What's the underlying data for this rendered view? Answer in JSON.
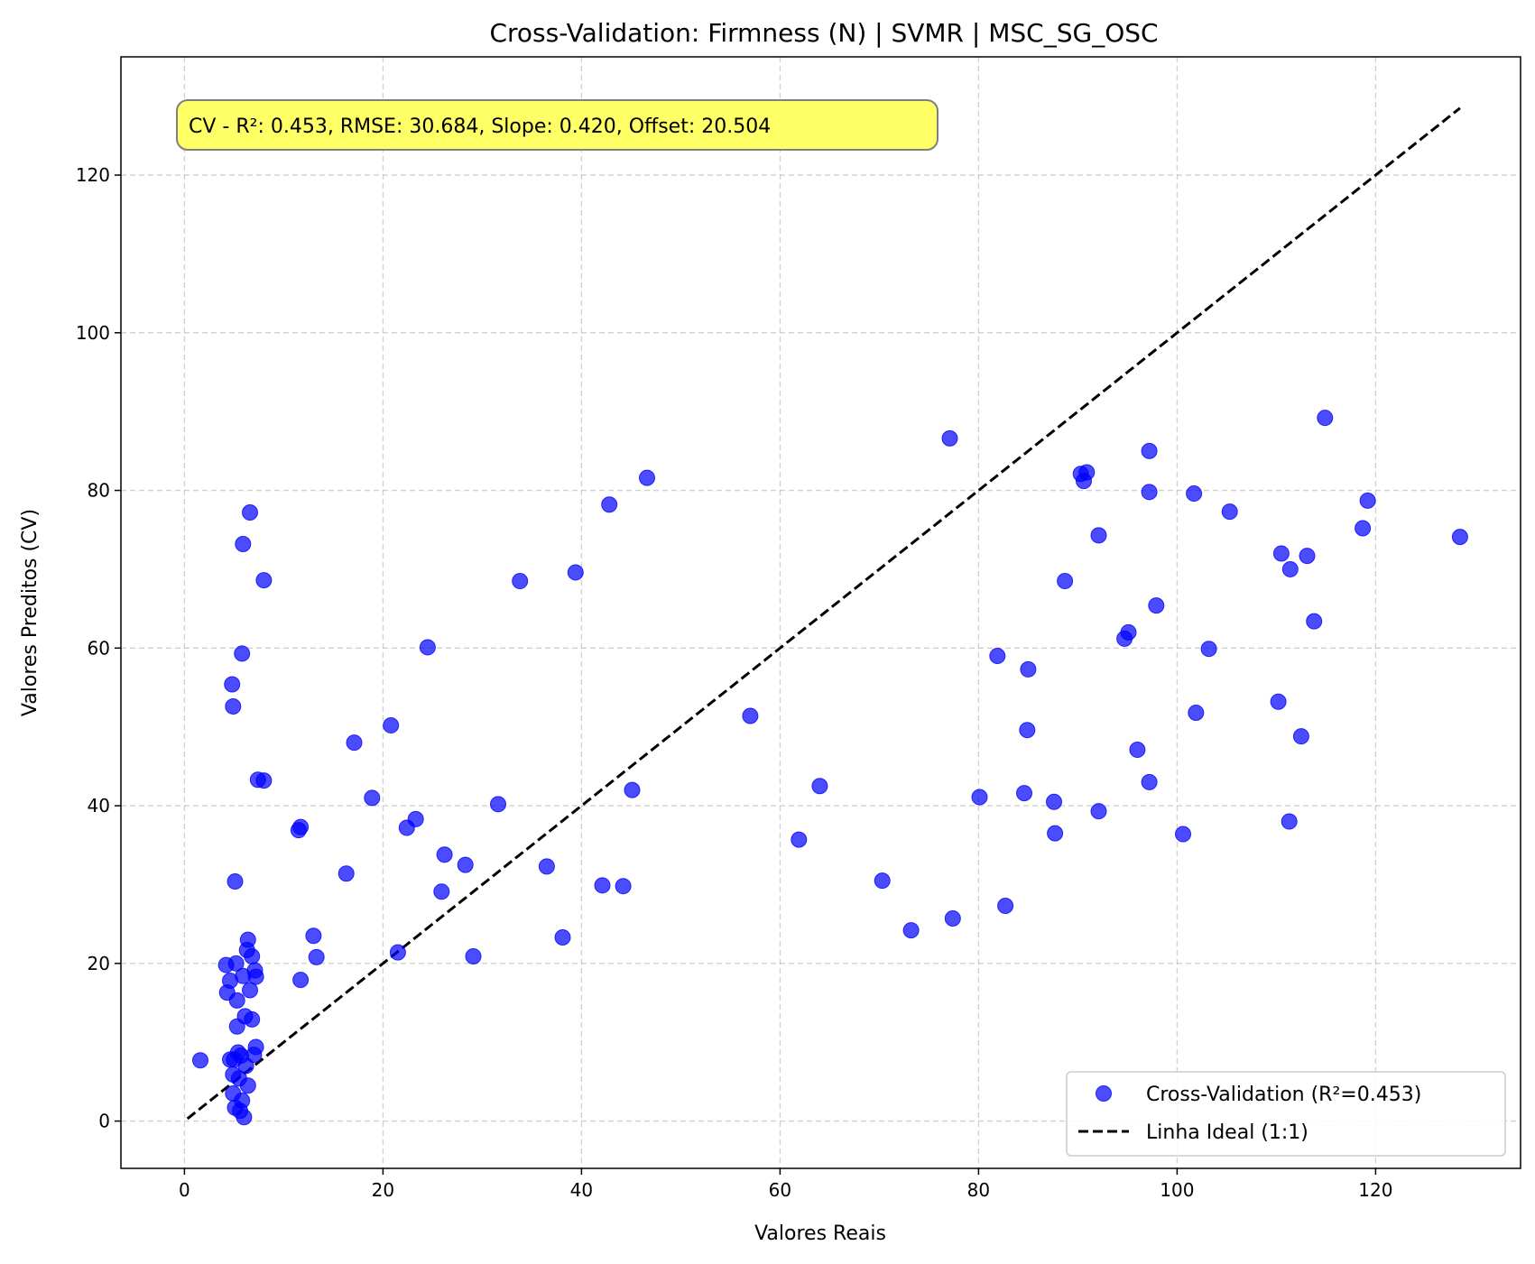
{
  "chart_data": {
    "type": "scatter",
    "title": "Cross-Validation: Firmness (N) | SVMR | MSC_SG_OSC",
    "xlabel": "Valores Reais",
    "ylabel": "Valores Preditos (CV)",
    "xlim": [
      -6.4,
      134.6
    ],
    "ylim": [
      -6.0,
      135.0
    ],
    "xticks": [
      0,
      20,
      40,
      60,
      80,
      100,
      120
    ],
    "yticks": [
      0,
      20,
      40,
      60,
      80,
      100,
      120
    ],
    "grid": true,
    "legend_position": "lower-right",
    "stats_box": "CV - R²: 0.453, RMSE: 30.684, Slope: 0.420, Offset: 20.504",
    "series": [
      {
        "name": "Cross-Validation (R²=0.453)",
        "kind": "scatter",
        "color": "#0000ff",
        "points": [
          [
            1.6,
            7.7
          ],
          [
            4.2,
            19.8
          ],
          [
            4.3,
            16.3
          ],
          [
            4.6,
            17.8
          ],
          [
            4.6,
            7.8
          ],
          [
            4.8,
            55.4
          ],
          [
            4.9,
            52.6
          ],
          [
            4.9,
            5.9
          ],
          [
            4.9,
            3.5
          ],
          [
            5.0,
            7.8
          ],
          [
            5.1,
            30.4
          ],
          [
            5.1,
            1.7
          ],
          [
            5.2,
            20.0
          ],
          [
            5.3,
            12.0
          ],
          [
            5.3,
            15.3
          ],
          [
            5.4,
            8.7
          ],
          [
            5.5,
            5.4
          ],
          [
            5.6,
            1.3
          ],
          [
            5.7,
            8.3
          ],
          [
            5.8,
            59.3
          ],
          [
            5.8,
            2.6
          ],
          [
            5.9,
            73.2
          ],
          [
            5.9,
            18.4
          ],
          [
            6.0,
            0.5
          ],
          [
            6.1,
            13.3
          ],
          [
            6.2,
            7.0
          ],
          [
            6.3,
            21.7
          ],
          [
            6.4,
            23.0
          ],
          [
            6.4,
            4.5
          ],
          [
            6.6,
            77.2
          ],
          [
            6.6,
            16.6
          ],
          [
            6.8,
            20.9
          ],
          [
            6.8,
            12.9
          ],
          [
            7.0,
            8.4
          ],
          [
            7.1,
            19.1
          ],
          [
            7.2,
            18.3
          ],
          [
            7.2,
            9.4
          ],
          [
            7.4,
            43.3
          ],
          [
            8.0,
            43.2
          ],
          [
            8.0,
            68.6
          ],
          [
            11.5,
            36.9
          ],
          [
            11.7,
            37.3
          ],
          [
            11.7,
            17.9
          ],
          [
            13.0,
            23.5
          ],
          [
            13.3,
            20.8
          ],
          [
            16.3,
            31.4
          ],
          [
            17.1,
            48.0
          ],
          [
            18.9,
            41.0
          ],
          [
            20.8,
            50.2
          ],
          [
            21.5,
            21.4
          ],
          [
            22.4,
            37.2
          ],
          [
            23.3,
            38.3
          ],
          [
            24.5,
            60.1
          ],
          [
            25.9,
            29.1
          ],
          [
            26.2,
            33.8
          ],
          [
            28.3,
            32.5
          ],
          [
            29.1,
            20.9
          ],
          [
            31.6,
            40.2
          ],
          [
            33.8,
            68.5
          ],
          [
            36.5,
            32.3
          ],
          [
            38.1,
            23.3
          ],
          [
            39.4,
            69.6
          ],
          [
            42.1,
            29.9
          ],
          [
            42.8,
            78.2
          ],
          [
            44.2,
            29.8
          ],
          [
            45.1,
            42.0
          ],
          [
            46.6,
            81.6
          ],
          [
            57.0,
            51.4
          ],
          [
            61.9,
            35.7
          ],
          [
            64.0,
            42.5
          ],
          [
            70.3,
            30.5
          ],
          [
            73.2,
            24.2
          ],
          [
            77.1,
            86.6
          ],
          [
            77.4,
            25.7
          ],
          [
            80.1,
            41.1
          ],
          [
            81.9,
            59.0
          ],
          [
            82.7,
            27.3
          ],
          [
            84.6,
            41.6
          ],
          [
            84.9,
            49.6
          ],
          [
            85.0,
            57.3
          ],
          [
            87.6,
            40.5
          ],
          [
            87.7,
            36.5
          ],
          [
            88.7,
            68.5
          ],
          [
            90.3,
            82.1
          ],
          [
            90.6,
            81.2
          ],
          [
            90.9,
            82.3
          ],
          [
            92.1,
            74.3
          ],
          [
            92.1,
            39.3
          ],
          [
            94.7,
            61.2
          ],
          [
            95.1,
            62.0
          ],
          [
            96.0,
            47.1
          ],
          [
            97.2,
            85.0
          ],
          [
            97.2,
            79.8
          ],
          [
            97.2,
            43.0
          ],
          [
            97.9,
            65.4
          ],
          [
            100.6,
            36.4
          ],
          [
            101.7,
            79.6
          ],
          [
            101.9,
            51.8
          ],
          [
            103.2,
            59.9
          ],
          [
            105.3,
            77.3
          ],
          [
            110.2,
            53.2
          ],
          [
            110.5,
            72.0
          ],
          [
            111.3,
            38.0
          ],
          [
            111.4,
            70.0
          ],
          [
            112.5,
            48.8
          ],
          [
            113.1,
            71.7
          ],
          [
            113.8,
            63.4
          ],
          [
            114.9,
            89.2
          ],
          [
            118.7,
            75.2
          ],
          [
            119.2,
            78.7
          ],
          [
            128.5,
            74.1
          ]
        ]
      },
      {
        "name": "Linha Ideal (1:1)",
        "kind": "line",
        "color": "#000000",
        "dash": "dashed",
        "x": [
          0.3,
          128.5
        ],
        "y": [
          0.3,
          128.5
        ]
      }
    ]
  }
}
